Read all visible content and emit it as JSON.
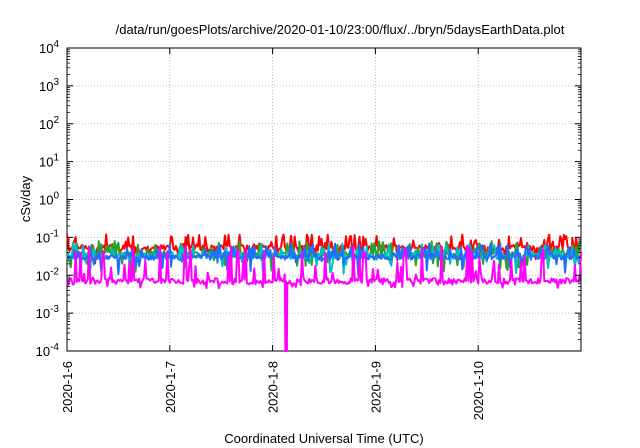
{
  "chart_data": {
    "type": "line",
    "title": "/data/run/goesPlots/archive/2020-01-10/23:00/flux/../bryn/5daysEarthData.plot",
    "xlabel": "Coordinated Universal Time (UTC)",
    "ylabel": "cSv/day",
    "y_scale": "log",
    "ylim": [
      0.0001,
      10000
    ],
    "y_ticks": [
      {
        "value": 0.0001,
        "base": "10",
        "exp": "-4"
      },
      {
        "value": 0.001,
        "base": "10",
        "exp": "-3"
      },
      {
        "value": 0.01,
        "base": "10",
        "exp": "-2"
      },
      {
        "value": 0.1,
        "base": "10",
        "exp": "-1"
      },
      {
        "value": 1,
        "base": "10",
        "exp": "0"
      },
      {
        "value": 10,
        "base": "10",
        "exp": "1"
      },
      {
        "value": 100,
        "base": "10",
        "exp": "2"
      },
      {
        "value": 1000,
        "base": "10",
        "exp": "3"
      },
      {
        "value": 10000,
        "base": "10",
        "exp": "4"
      }
    ],
    "xlim": [
      "2020-01-06",
      "2020-01-11"
    ],
    "x_ticks": [
      "2020-1-6",
      "2020-1-7",
      "2020-1-8",
      "2020-1-9",
      "2020-1-10"
    ],
    "grid": true,
    "series": [
      {
        "color": "#ff0000",
        "base": 0.052,
        "spike_max": 0.12,
        "dip_min": 0.02
      },
      {
        "color": "#2ca02c",
        "base": 0.035,
        "spike_max": 0.08,
        "dip_min": 0.012
      },
      {
        "color": "#00bfbf",
        "base": 0.032,
        "spike_max": 0.07,
        "dip_min": 0.011
      },
      {
        "color": "#1f6fff",
        "base": 0.03,
        "spike_max": 0.07,
        "dip_min": 0.01
      },
      {
        "color": "#ff00ff",
        "base": 0.007,
        "spike_max": 0.06,
        "dip_min": 0.0045,
        "drop": {
          "x": "2020-01-08 03:00",
          "value": 0.0001
        }
      }
    ]
  }
}
